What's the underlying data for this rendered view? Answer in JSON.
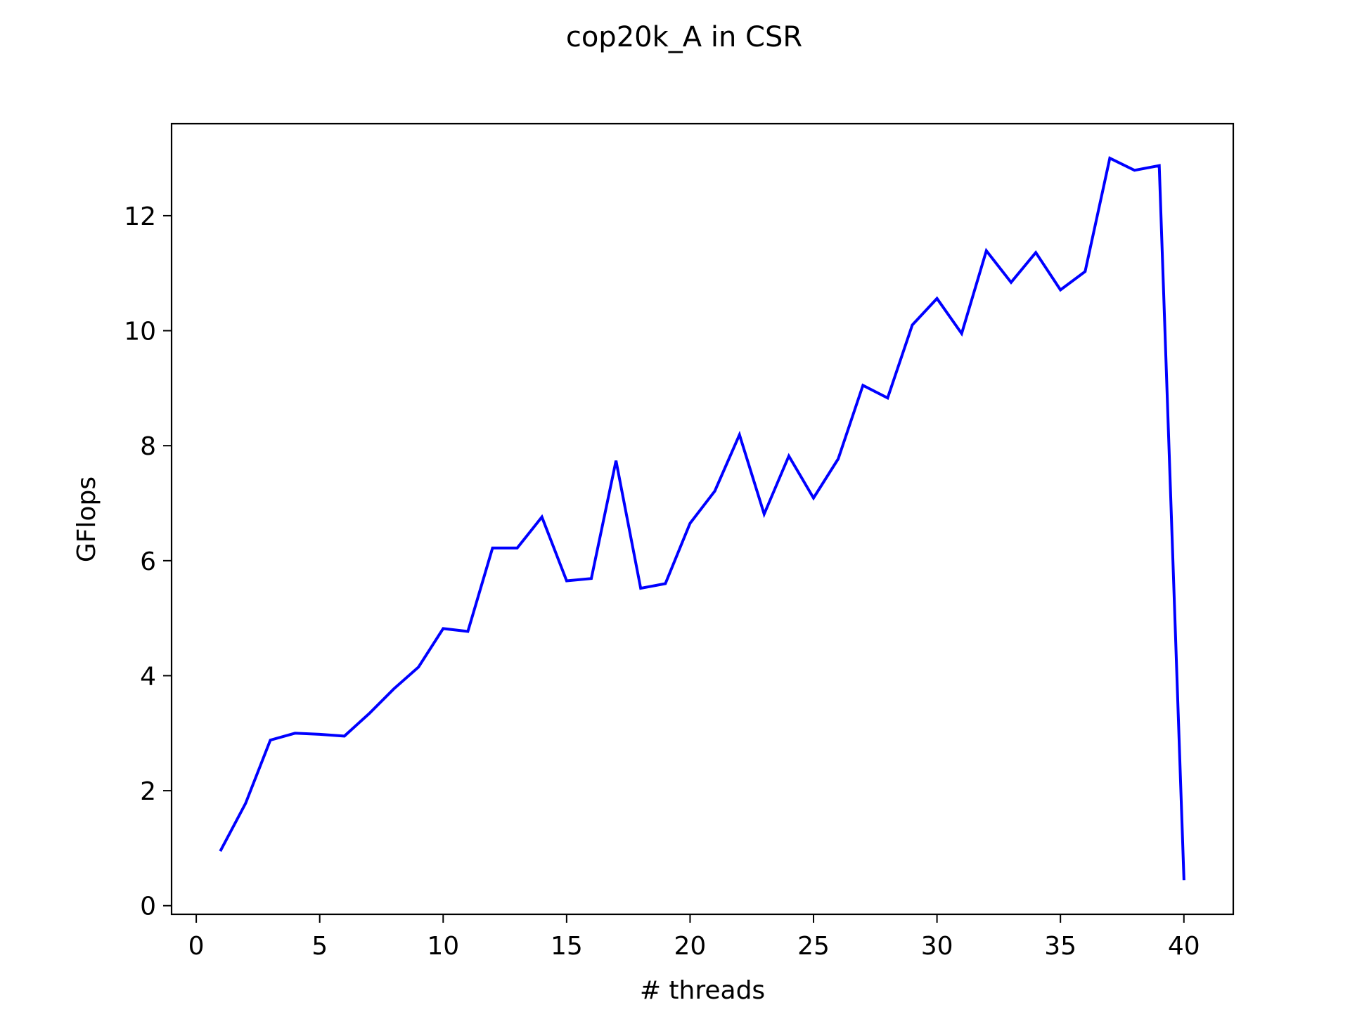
{
  "chart_data": {
    "type": "line",
    "title": "cop20k_A in CSR",
    "xlabel": "# threads",
    "ylabel": "GFlops",
    "xlim": [
      -1,
      42
    ],
    "ylim": [
      -0.15,
      13.6
    ],
    "xticks": [
      0,
      5,
      10,
      15,
      20,
      25,
      30,
      35,
      40
    ],
    "xtick_labels": [
      "0",
      "5",
      "10",
      "15",
      "20",
      "25",
      "30",
      "35",
      "40"
    ],
    "yticks": [
      0,
      2,
      4,
      6,
      8,
      10,
      12
    ],
    "ytick_labels": [
      "0",
      "2",
      "4",
      "6",
      "8",
      "10",
      "12"
    ],
    "grid": false,
    "legend": "none",
    "series": [
      {
        "color": "#0000ff",
        "x": [
          1,
          2,
          3,
          4,
          5,
          6,
          7,
          8,
          9,
          10,
          11,
          12,
          13,
          14,
          15,
          16,
          17,
          18,
          19,
          20,
          21,
          22,
          23,
          24,
          25,
          26,
          27,
          28,
          29,
          30,
          31,
          32,
          33,
          34,
          35,
          36,
          37,
          38,
          39,
          40
        ],
        "y": [
          0.97,
          1.78,
          2.88,
          3.0,
          2.98,
          2.95,
          3.34,
          3.77,
          4.15,
          4.82,
          4.77,
          6.22,
          6.22,
          6.76,
          5.65,
          5.69,
          7.74,
          5.52,
          5.6,
          6.65,
          7.21,
          8.19,
          6.81,
          7.82,
          7.09,
          7.77,
          9.05,
          8.83,
          10.1,
          10.56,
          9.95,
          11.39,
          10.84,
          11.36,
          10.71,
          11.03,
          13.0,
          12.79,
          12.87,
          0.47
        ]
      }
    ]
  }
}
